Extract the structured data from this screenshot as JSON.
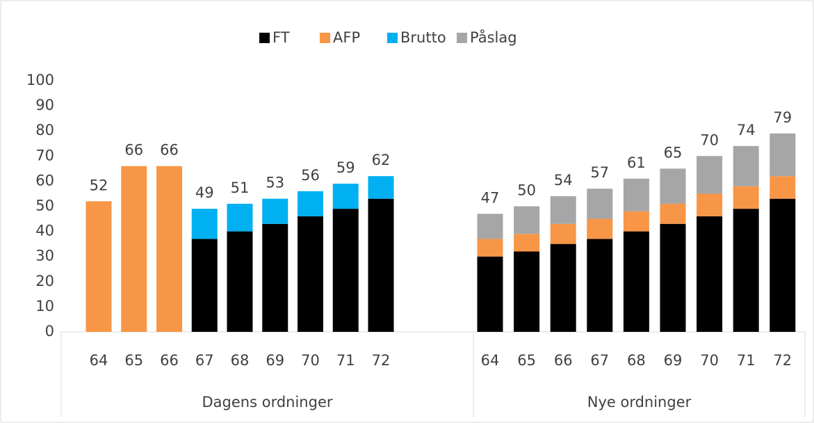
{
  "chart_data": {
    "type": "stacked_bar",
    "groups": [
      {
        "name": "Dagens ordninger",
        "categories": [
          "64",
          "65",
          "66",
          "67",
          "68",
          "69",
          "70",
          "71",
          "72"
        ]
      },
      {
        "name": "Nye ordninger",
        "categories": [
          "64",
          "65",
          "66",
          "67",
          "68",
          "69",
          "70",
          "71",
          "72"
        ]
      }
    ],
    "series": [
      {
        "name": "FT",
        "color": "#000000",
        "values": [
          null,
          null,
          null,
          37,
          40,
          43,
          46,
          49,
          53,
          30,
          32,
          35,
          37,
          40,
          43,
          46,
          49,
          53
        ]
      },
      {
        "name": "AFP",
        "color": "#f79646",
        "values": [
          52,
          66,
          66,
          null,
          null,
          null,
          null,
          null,
          null,
          7,
          7,
          8,
          8,
          8,
          8,
          9,
          9,
          9
        ]
      },
      {
        "name": "Brutto",
        "color": "#00b0f0",
        "values": [
          null,
          null,
          null,
          12,
          11,
          10,
          10,
          10,
          9,
          null,
          null,
          null,
          null,
          null,
          null,
          null,
          null,
          null
        ]
      },
      {
        "name": "Påslag",
        "color": "#a6a6a6",
        "values": [
          null,
          null,
          null,
          null,
          null,
          null,
          null,
          null,
          null,
          10,
          11,
          11,
          12,
          13,
          14,
          15,
          16,
          17
        ]
      }
    ],
    "totals": [
      52,
      66,
      66,
      49,
      51,
      53,
      56,
      59,
      62,
      47,
      50,
      54,
      57,
      61,
      65,
      70,
      74,
      79
    ],
    "ylim": [
      0,
      100
    ],
    "yticks": [
      0,
      10,
      20,
      30,
      40,
      50,
      60,
      70,
      80,
      90,
      100
    ],
    "grid": false,
    "legend": "top"
  }
}
